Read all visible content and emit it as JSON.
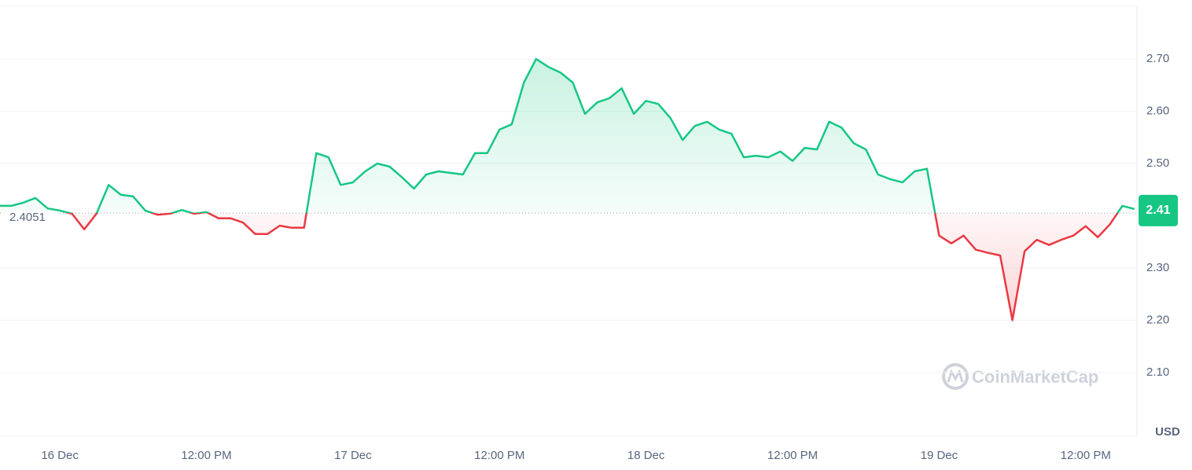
{
  "chart_data": {
    "type": "line",
    "x": [
      -5,
      -4,
      -3,
      -2,
      -1,
      0,
      1,
      2,
      3,
      4,
      5,
      6,
      7,
      8,
      9,
      10,
      11,
      12,
      13,
      14,
      15,
      16,
      17,
      18,
      19,
      20,
      21,
      22,
      23,
      24,
      25,
      26,
      27,
      28,
      29,
      30,
      31,
      32,
      33,
      34,
      35,
      36,
      37,
      38,
      39,
      40,
      41,
      42,
      43,
      44,
      45,
      46,
      47,
      48,
      49,
      50,
      51,
      52,
      53,
      54,
      55,
      56,
      57,
      58,
      59,
      60,
      61,
      62,
      63,
      64,
      65,
      66,
      67,
      68,
      69,
      70,
      71,
      72,
      73,
      74,
      75,
      76,
      77,
      78,
      79,
      80,
      81,
      82,
      83,
      84,
      85,
      86,
      87,
      88
    ],
    "values": [
      2.419,
      2.419,
      2.425,
      2.434,
      2.414,
      2.41,
      2.404,
      2.374,
      2.404,
      2.459,
      2.44,
      2.437,
      2.41,
      2.402,
      2.404,
      2.411,
      2.404,
      2.407,
      2.395,
      2.395,
      2.387,
      2.365,
      2.365,
      2.381,
      2.377,
      2.377,
      2.52,
      2.512,
      2.459,
      2.464,
      2.485,
      2.5,
      2.494,
      2.474,
      2.452,
      2.479,
      2.485,
      2.482,
      2.479,
      2.52,
      2.52,
      2.565,
      2.575,
      2.655,
      2.7,
      2.685,
      2.674,
      2.655,
      2.595,
      2.617,
      2.625,
      2.644,
      2.595,
      2.62,
      2.614,
      2.587,
      2.545,
      2.572,
      2.58,
      2.565,
      2.557,
      2.512,
      2.515,
      2.512,
      2.523,
      2.505,
      2.53,
      2.527,
      2.58,
      2.569,
      2.539,
      2.527,
      2.479,
      2.47,
      2.464,
      2.485,
      2.49,
      2.362,
      2.347,
      2.362,
      2.335,
      2.329,
      2.324,
      2.2,
      2.332,
      2.354,
      2.344,
      2.354,
      2.362,
      2.38,
      2.359,
      2.384,
      2.419,
      2.413
    ],
    "reference_price": 2.4051,
    "current_price": 2.41,
    "up_color": "#16c784",
    "down_color": "#ea3943",
    "xlim": [
      -4.9,
      88.2
    ],
    "xticks": [
      {
        "value": 0,
        "label": "16 Dec"
      },
      {
        "value": 12,
        "label": "12:00 PM"
      },
      {
        "value": 24,
        "label": "17 Dec"
      },
      {
        "value": 36,
        "label": "12:00 PM"
      },
      {
        "value": 48,
        "label": "18 Dec"
      },
      {
        "value": 60,
        "label": "12:00 PM"
      },
      {
        "value": 72,
        "label": "19 Dec"
      },
      {
        "value": 84,
        "label": "12:00 PM"
      }
    ],
    "ylim": [
      1.978,
      2.801
    ],
    "yticks": [
      {
        "value": 2.1,
        "label": "2.10"
      },
      {
        "value": 2.2,
        "label": "2.20"
      },
      {
        "value": 2.3,
        "label": "2.30"
      },
      {
        "value": 2.5,
        "label": "2.50"
      },
      {
        "value": 2.6,
        "label": "2.60"
      },
      {
        "value": 2.7,
        "label": "2.70"
      }
    ],
    "grid": true,
    "unit": "USD",
    "watermark": "CoinMarketCap"
  }
}
